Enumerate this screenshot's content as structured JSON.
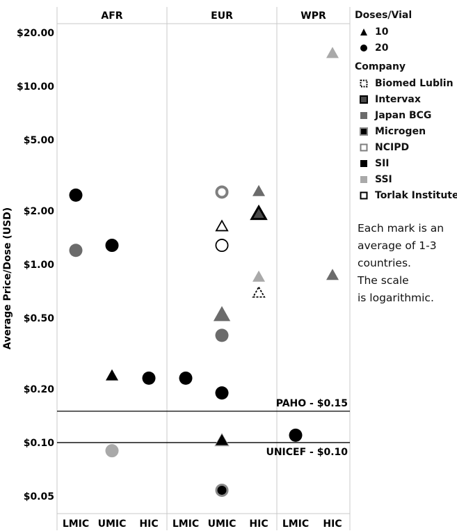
{
  "chart_data": {
    "type": "scatter",
    "xlabel": "",
    "ylabel": "Average Price/Dose (USD)",
    "y_scale": "log",
    "ylim": [
      0.043,
      23
    ],
    "y_ticks": [
      {
        "value": 20,
        "label": "$20.00"
      },
      {
        "value": 10,
        "label": "$10.00"
      },
      {
        "value": 5,
        "label": "$5.00"
      },
      {
        "value": 2,
        "label": "$2.00"
      },
      {
        "value": 1,
        "label": "$1.00"
      },
      {
        "value": 0.5,
        "label": "$0.50"
      },
      {
        "value": 0.2,
        "label": "$0.20"
      },
      {
        "value": 0.1,
        "label": "$0.10"
      },
      {
        "value": 0.05,
        "label": "$0.05"
      }
    ],
    "panels": [
      {
        "name": "AFR",
        "categories": [
          "LMIC",
          "UMIC",
          "HIC"
        ]
      },
      {
        "name": "EUR",
        "categories": [
          "LMIC",
          "UMIC",
          "HIC"
        ]
      },
      {
        "name": "WPR",
        "categories": [
          "LMIC",
          "HIC"
        ]
      }
    ],
    "reference_lines": [
      {
        "value": 0.15,
        "label": "PAHO - $0.15"
      },
      {
        "value": 0.1,
        "label": "UNICEF - $0.10"
      }
    ],
    "points": [
      {
        "panel": "AFR",
        "category": "LMIC",
        "company": "SII",
        "doses": 20,
        "y": 2.45
      },
      {
        "panel": "AFR",
        "category": "LMIC",
        "company": "Japan BCG",
        "doses": 20,
        "y": 1.2
      },
      {
        "panel": "AFR",
        "category": "UMIC",
        "company": "SII",
        "doses": 20,
        "y": 1.28
      },
      {
        "panel": "AFR",
        "category": "UMIC",
        "company": "SII",
        "doses": 10,
        "y": 0.24
      },
      {
        "panel": "AFR",
        "category": "UMIC",
        "company": "SSI",
        "doses": 20,
        "y": 0.09
      },
      {
        "panel": "AFR",
        "category": "HIC",
        "company": "SII",
        "doses": 20,
        "y": 0.23
      },
      {
        "panel": "EUR",
        "category": "LMIC",
        "company": "SII",
        "doses": 20,
        "y": 0.23
      },
      {
        "panel": "EUR",
        "category": "UMIC",
        "company": "NCIPD",
        "doses": 20,
        "y": 2.55
      },
      {
        "panel": "EUR",
        "category": "UMIC",
        "company": "Torlak Institute",
        "doses": 10,
        "y": 1.65
      },
      {
        "panel": "EUR",
        "category": "UMIC",
        "company": "Torlak Institute",
        "doses": 20,
        "y": 1.28
      },
      {
        "panel": "EUR",
        "category": "UMIC",
        "company": "Japan BCG",
        "doses": 10,
        "y": 0.53
      },
      {
        "panel": "EUR",
        "category": "UMIC",
        "company": "Japan BCG",
        "doses": 20,
        "y": 0.4
      },
      {
        "panel": "EUR",
        "category": "UMIC",
        "company": "SII",
        "doses": 20,
        "y": 0.19
      },
      {
        "panel": "EUR",
        "category": "UMIC",
        "company": "SSI",
        "doses": 10,
        "y": 0.104
      },
      {
        "panel": "EUR",
        "category": "UMIC",
        "company": "SII",
        "doses": 10,
        "y": 0.104
      },
      {
        "panel": "EUR",
        "category": "UMIC",
        "company": "Microgen",
        "doses": 20,
        "y": 0.054
      },
      {
        "panel": "EUR",
        "category": "HIC",
        "company": "Japan BCG",
        "doses": 10,
        "y": 2.6
      },
      {
        "panel": "EUR",
        "category": "HIC",
        "company": "Intervax",
        "doses": 10,
        "y": 1.95
      },
      {
        "panel": "EUR",
        "category": "HIC",
        "company": "SSI",
        "doses": 10,
        "y": 0.86
      },
      {
        "panel": "EUR",
        "category": "HIC",
        "company": "Biomed Lublin",
        "doses": 10,
        "y": 0.7
      },
      {
        "panel": "WPR",
        "category": "LMIC",
        "company": "SII",
        "doses": 20,
        "y": 0.11
      },
      {
        "panel": "WPR",
        "category": "HIC",
        "company": "SSI",
        "doses": 10,
        "y": 15.5
      },
      {
        "panel": "WPR",
        "category": "HIC",
        "company": "Japan BCG",
        "doses": 10,
        "y": 0.88
      }
    ]
  },
  "legend": {
    "doses_title": "Doses/Vial",
    "doses_items": [
      {
        "label": "10",
        "shape": "triangle"
      },
      {
        "label": "20",
        "shape": "circle"
      }
    ],
    "company_title": "Company",
    "company_items": [
      {
        "label": "Biomed Lublin",
        "style": "dotted-outline"
      },
      {
        "label": "Intervax",
        "style": "dark-gray-black-outline"
      },
      {
        "label": "Japan BCG",
        "style": "mid-gray"
      },
      {
        "label": "Microgen",
        "style": "black-gray-outline"
      },
      {
        "label": "NCIPD",
        "style": "white-gray-outline"
      },
      {
        "label": "SII",
        "style": "black"
      },
      {
        "label": "SSI",
        "style": "light-gray"
      },
      {
        "label": "Torlak Institute",
        "style": "white-black-outline"
      }
    ]
  },
  "note": "Each mark is an\naverage of 1-3\ncountries.\nThe scale\nis logarithmic.",
  "colors": {
    "black": "#000000",
    "mid_gray": "#6b6b6b",
    "light_gray": "#a9a9a9",
    "dark_gray": "#4a4a4a",
    "outline_gray": "#7f7f7f",
    "grid": "#c8c8c8"
  }
}
